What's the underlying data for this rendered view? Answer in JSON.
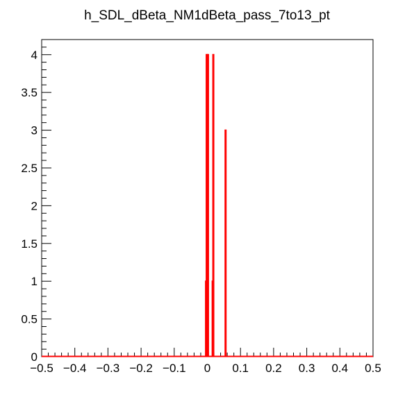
{
  "chart_data": {
    "type": "histogram",
    "title": "h_SDL_dBeta_NM1dBeta_pass_7to13_pt",
    "xlabel": "",
    "ylabel": "",
    "xlim": [
      -0.5,
      0.5
    ],
    "ylim": [
      0,
      4.2
    ],
    "x_ticks": [
      -0.5,
      -0.4,
      -0.3,
      -0.2,
      -0.1,
      0,
      0.1,
      0.2,
      0.3,
      0.4,
      0.5
    ],
    "x_tick_labels": [
      "−0.5",
      "−0.4",
      "−0.3",
      "−0.2",
      "−0.1",
      "0",
      "0.1",
      "0.2",
      "0.3",
      "0.4",
      "0.5"
    ],
    "y_ticks": [
      0,
      0.5,
      1,
      1.5,
      2,
      2.5,
      3,
      3.5,
      4
    ],
    "y_tick_labels": [
      "0",
      "0.5",
      "1",
      "1.5",
      "2",
      "2.5",
      "3",
      "3.5",
      "4"
    ],
    "grid": false,
    "line_color": "#ff0000",
    "series": [
      {
        "bins": [
          {
            "x_low": -0.005,
            "x_high": -0.003,
            "value": 1
          },
          {
            "x_low": -0.003,
            "x_high": -0.001,
            "value": 4
          },
          {
            "x_low": -0.001,
            "x_high": 0.001,
            "value": 2
          },
          {
            "x_low": 0.001,
            "x_high": 0.003,
            "value": 4
          },
          {
            "x_low": 0.015,
            "x_high": 0.017,
            "value": 1
          },
          {
            "x_low": 0.017,
            "x_high": 0.019,
            "value": 4
          },
          {
            "x_low": 0.054,
            "x_high": 0.056,
            "value": 3
          }
        ]
      }
    ]
  }
}
